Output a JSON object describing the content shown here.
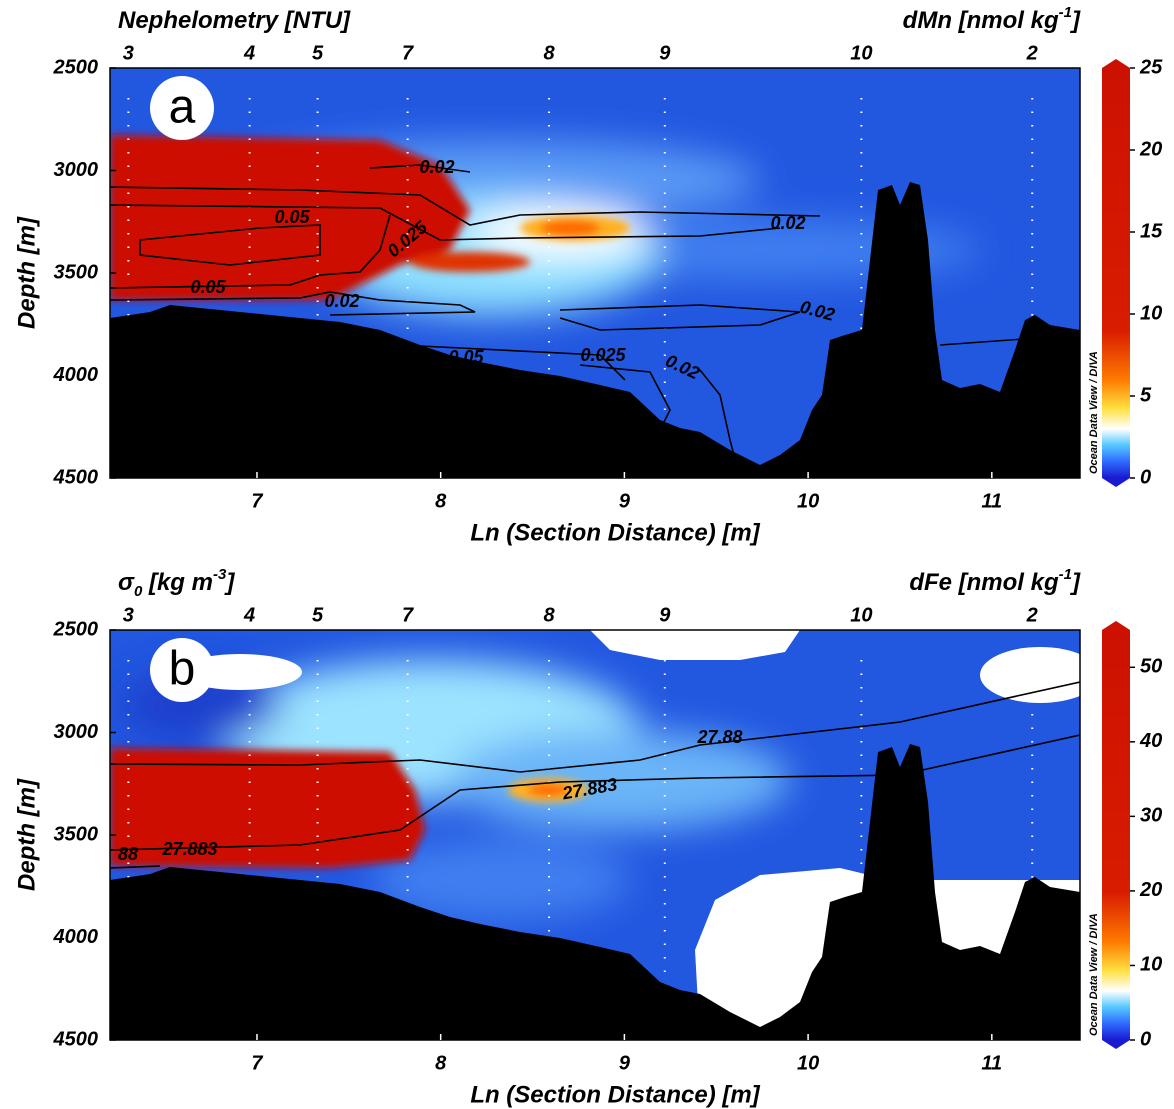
{
  "chart_data": [
    {
      "type": "section",
      "panel": "a",
      "title_left": [
        "Nephelometry [NTU]"
      ],
      "title_right": [
        "dMn [nmol kg",
        "-1",
        "]"
      ],
      "x_label": "Ln (Section Distance) [m]",
      "y_label": "Depth [m]",
      "xlim": [
        6.2,
        11.48
      ],
      "xticks": [
        7,
        8,
        9,
        10,
        11
      ],
      "ylim": [
        2500,
        4500
      ],
      "y_inverted": true,
      "yticks": [
        2500,
        3000,
        3500,
        4000,
        4500
      ],
      "clim": [
        0,
        25
      ],
      "cticks": [
        0,
        5,
        10,
        15,
        20,
        25
      ],
      "colorbar_label": "Ocean Data View / DIVA",
      "stations": {
        "labels": [
          "3",
          "4",
          "5",
          "7",
          "8",
          "9",
          "10",
          "2"
        ],
        "x": [
          6.3,
          6.96,
          7.33,
          7.82,
          8.59,
          9.22,
          10.29,
          11.22
        ]
      },
      "contour_labels": [
        "0.02",
        "0.05",
        "0.025",
        "0.02",
        "0.05",
        "0.02",
        "0.02",
        "0.05",
        "0.025",
        "0.02"
      ]
    },
    {
      "type": "section",
      "panel": "b",
      "title_left": [
        "σ",
        "0",
        " [kg m",
        "-3",
        "]"
      ],
      "title_right": [
        "dFe [nmol kg",
        "-1",
        "]"
      ],
      "x_label": "Ln (Section Distance) [m]",
      "y_label": "Depth [m]",
      "xlim": [
        6.2,
        11.48
      ],
      "xticks": [
        7,
        8,
        9,
        10,
        11
      ],
      "ylim": [
        2500,
        4500
      ],
      "y_inverted": true,
      "yticks": [
        2500,
        3000,
        3500,
        4000,
        4500
      ],
      "clim": [
        0,
        55
      ],
      "cticks": [
        0,
        10,
        20,
        30,
        40,
        50
      ],
      "colorbar_label": "Ocean Data View / DIVA",
      "stations": {
        "labels": [
          "3",
          "4",
          "5",
          "7",
          "8",
          "9",
          "10",
          "2"
        ],
        "x": [
          6.3,
          6.96,
          7.33,
          7.82,
          8.59,
          9.22,
          10.29,
          11.22
        ]
      },
      "contour_labels": [
        "27.88",
        "27.883",
        "88",
        "27.883"
      ]
    }
  ]
}
